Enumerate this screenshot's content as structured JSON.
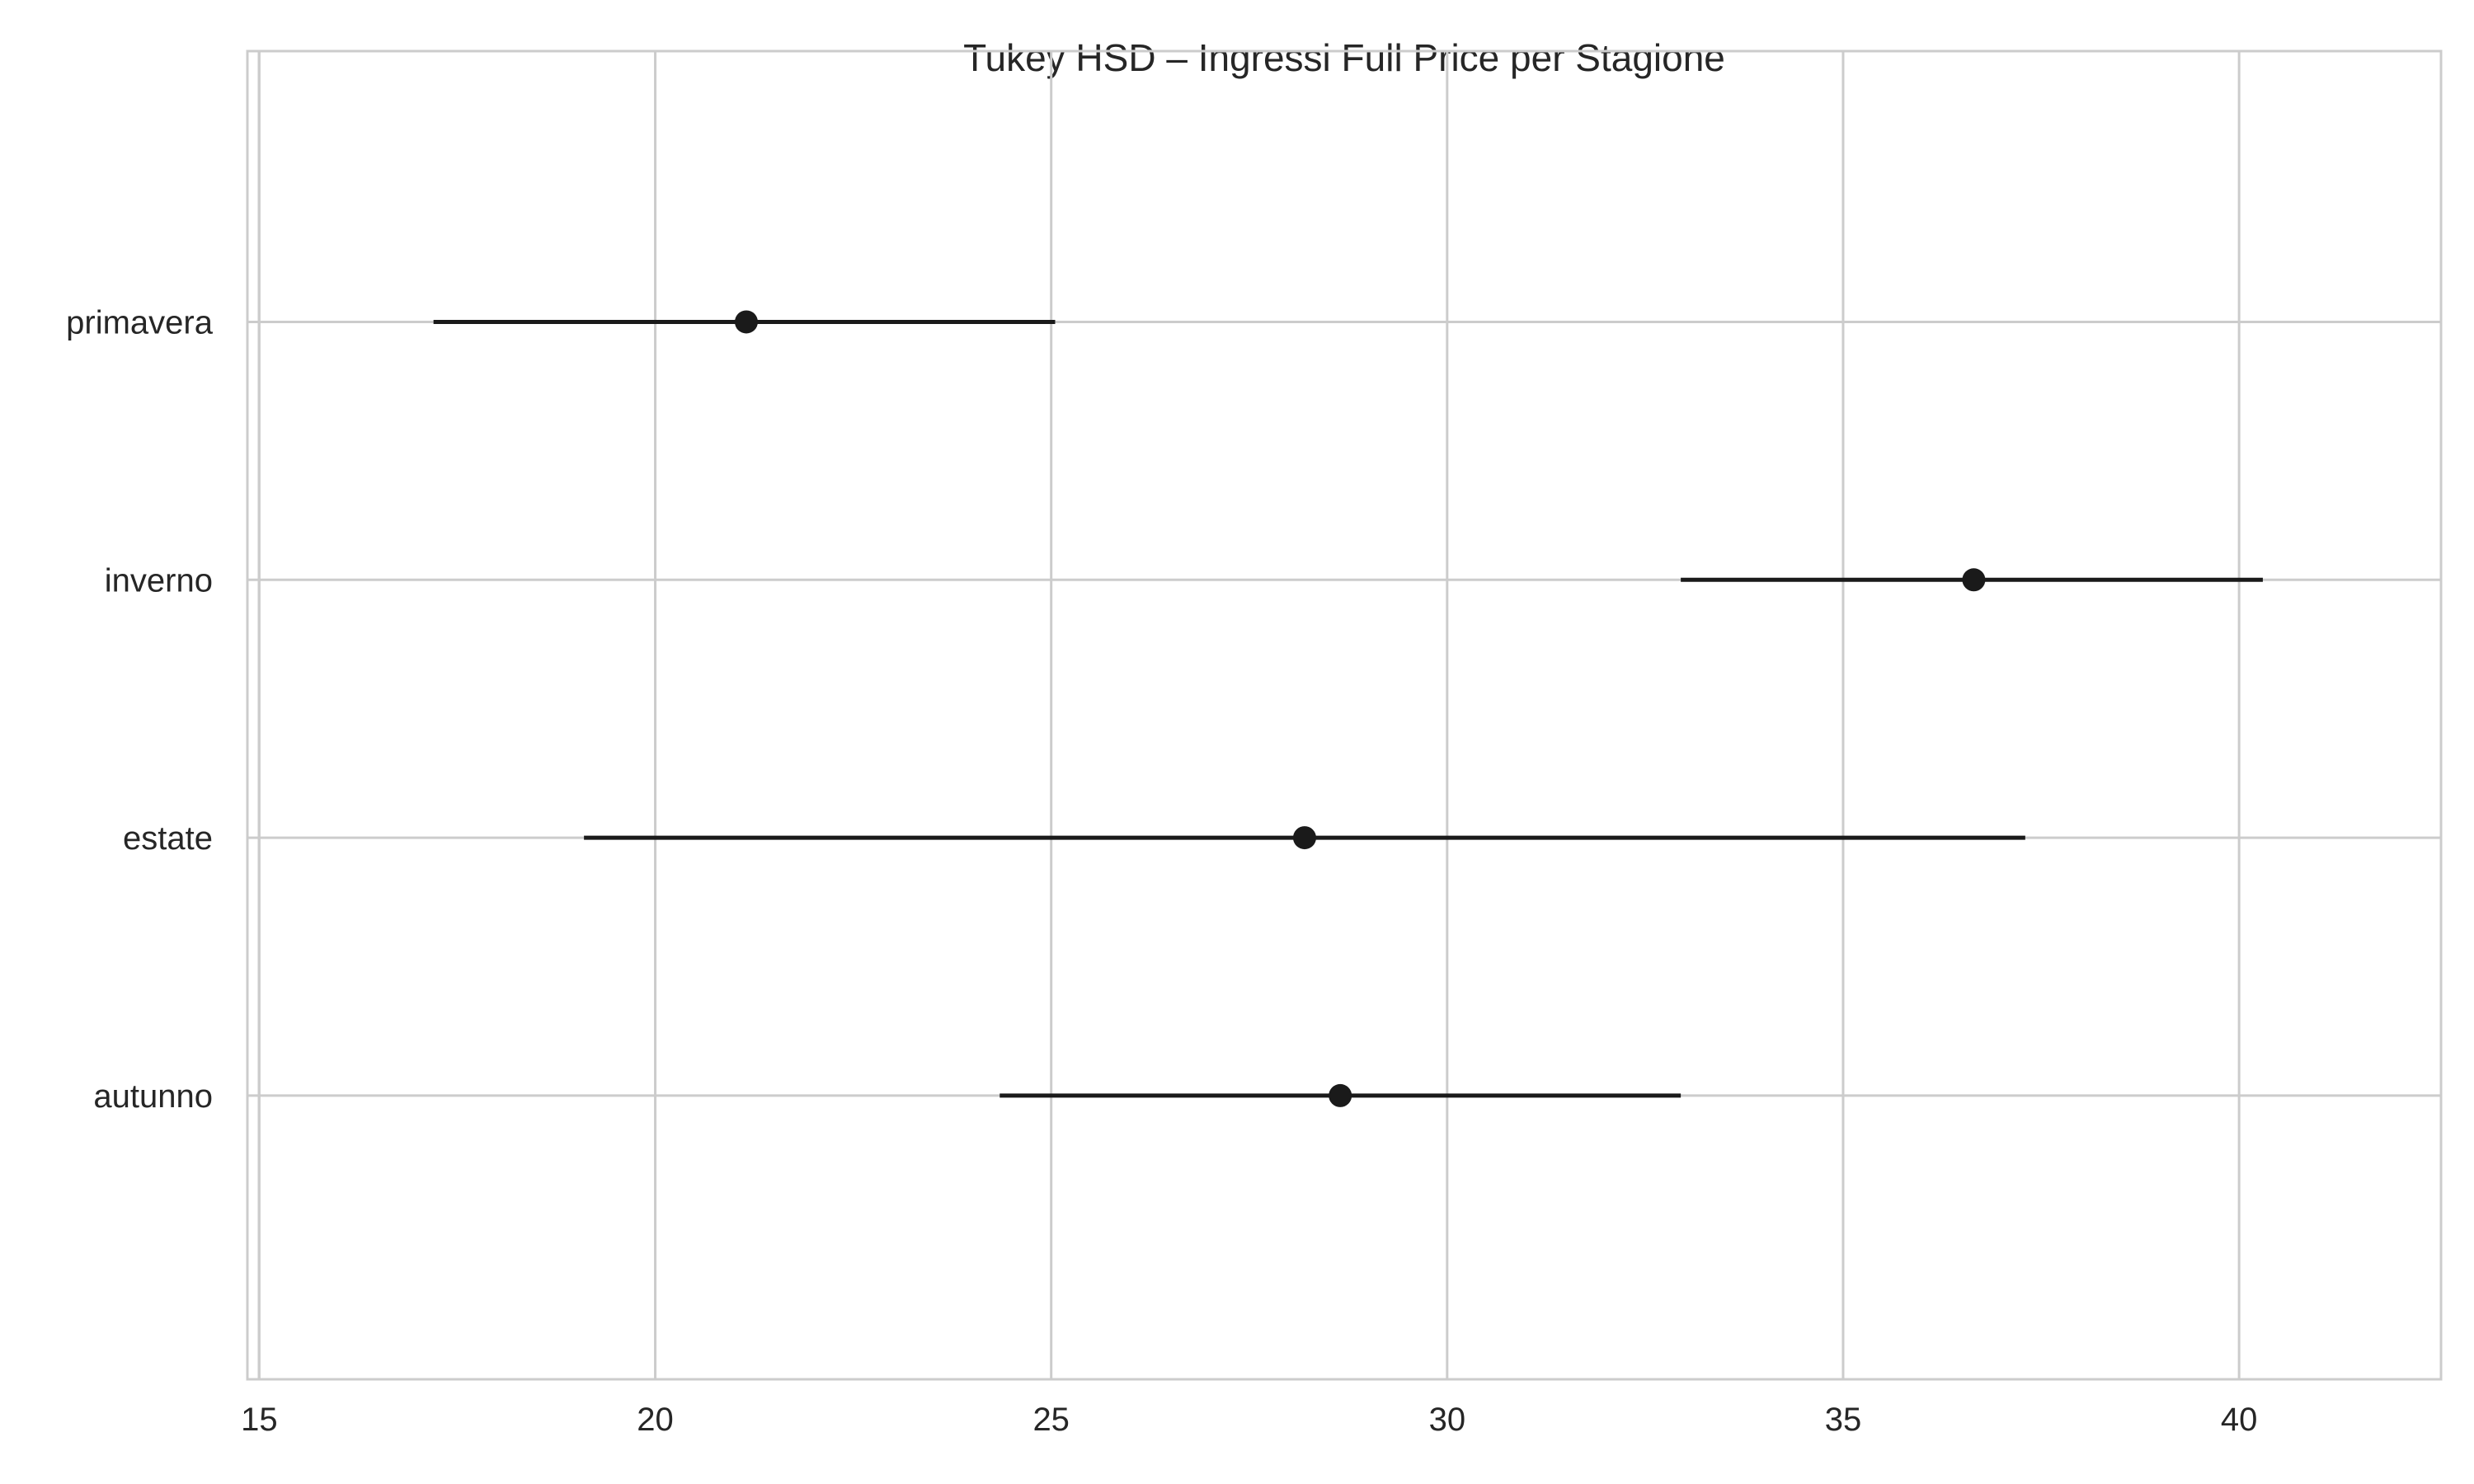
{
  "chart_data": {
    "type": "scatter",
    "title": "Tukey HSD – Ingressi Full Price per Stagione",
    "xlabel": "",
    "ylabel": "",
    "xlim": [
      14.85,
      42.55
    ],
    "x_ticks": [
      15,
      20,
      25,
      30,
      35,
      40
    ],
    "x_tick_labels": [
      "15",
      "20",
      "25",
      "30",
      "35",
      "40"
    ],
    "grid": true,
    "legend": "none",
    "categories": [
      "primavera",
      "inverno",
      "estate",
      "autunno"
    ],
    "series": [
      {
        "means": [
          21.15,
          36.65,
          28.2,
          28.65
        ],
        "lower": [
          17.2,
          32.95,
          19.1,
          24.35
        ],
        "upper": [
          25.05,
          40.3,
          37.3,
          32.95
        ]
      }
    ]
  },
  "colors": {
    "marker": "#1a1a1a",
    "grid": "#cccccc",
    "spine": "#cccccc",
    "text": "#262626"
  }
}
